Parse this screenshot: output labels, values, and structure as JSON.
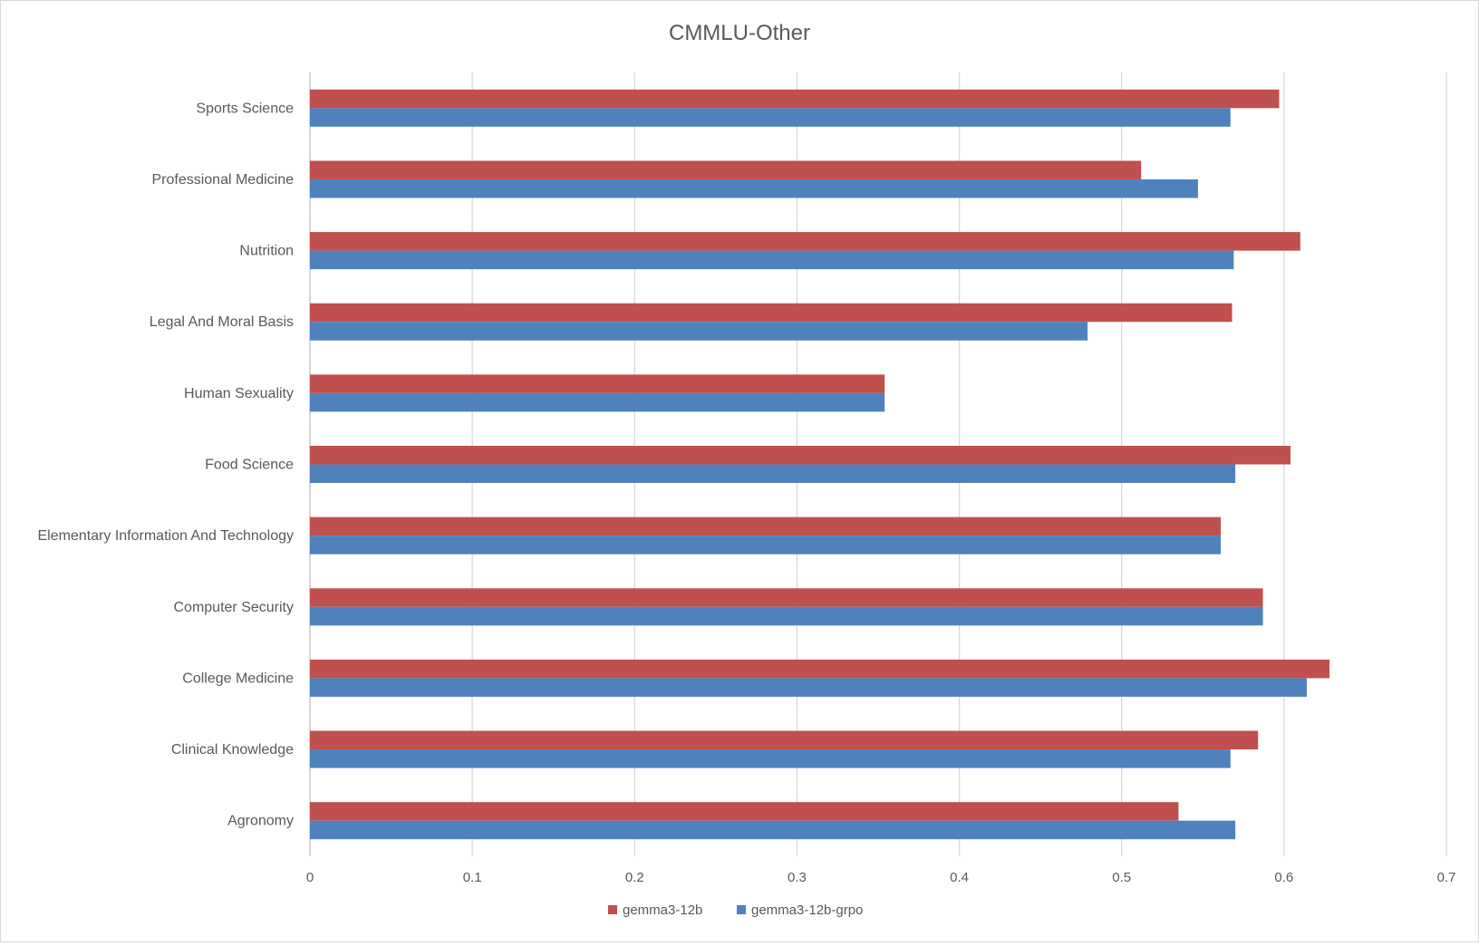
{
  "chart_data": {
    "type": "bar",
    "orientation": "horizontal",
    "title": "CMMLU-Other",
    "xlabel": "",
    "ylabel": "",
    "xlim": [
      0,
      0.7
    ],
    "x_ticks": [
      "0",
      "0.1",
      "0.2",
      "0.3",
      "0.4",
      "0.5",
      "0.6",
      "0.7"
    ],
    "grid": "vertical",
    "legend_position": "bottom",
    "categories": [
      "Sports Science",
      "Professional Medicine",
      "Nutrition",
      "Legal And Moral Basis",
      "Human Sexuality",
      "Food Science",
      "Elementary Information And Technology",
      "Computer Security",
      "College Medicine",
      "Clinical Knowledge",
      "Agronomy"
    ],
    "series": [
      {
        "name": "gemma3-12b",
        "color": "#c0504d",
        "values": [
          0.597,
          0.512,
          0.61,
          0.568,
          0.354,
          0.604,
          0.561,
          0.587,
          0.628,
          0.584,
          0.535
        ]
      },
      {
        "name": "gemma3-12b-grpo",
        "color": "#4f81bd",
        "values": [
          0.567,
          0.547,
          0.569,
          0.479,
          0.354,
          0.57,
          0.561,
          0.587,
          0.614,
          0.567,
          0.57
        ]
      }
    ]
  }
}
